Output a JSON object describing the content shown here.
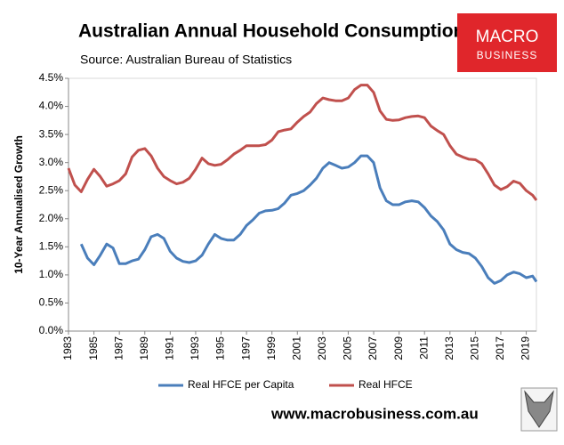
{
  "chart_data": {
    "type": "line",
    "title": "Australian Annual Household Consumption",
    "subtitle": "Source: Australian Bureau of Statistics",
    "logo": [
      "MACRO",
      "BUSINESS"
    ],
    "footer": "www.macrobusiness.com.au",
    "ylabel": "10-Year Annualised Growth",
    "legend": "bottom",
    "x": [
      1983.0,
      1983.5,
      1984.0,
      1984.5,
      1985.0,
      1985.5,
      1986.0,
      1986.5,
      1987.0,
      1987.5,
      1988.0,
      1988.5,
      1989.0,
      1989.5,
      1990.0,
      1990.5,
      1991.0,
      1991.5,
      1992.0,
      1992.5,
      1993.0,
      1993.5,
      1994.0,
      1994.5,
      1995.0,
      1995.5,
      1996.0,
      1996.5,
      1997.0,
      1997.5,
      1998.0,
      1998.5,
      1999.0,
      1999.5,
      2000.0,
      2000.5,
      2001.0,
      2001.5,
      2002.0,
      2002.5,
      2003.0,
      2003.5,
      2004.0,
      2004.5,
      2005.0,
      2005.5,
      2006.0,
      2006.5,
      2007.0,
      2007.5,
      2008.0,
      2008.5,
      2009.0,
      2009.5,
      2010.0,
      2010.5,
      2011.0,
      2011.5,
      2012.0,
      2012.5,
      2013.0,
      2013.5,
      2014.0,
      2014.5,
      2015.0,
      2015.5,
      2016.0,
      2016.5,
      2017.0,
      2017.5,
      2018.0,
      2018.5,
      2019.0,
      2019.5,
      2019.8
    ],
    "series": [
      {
        "name": "Real HFCE per Capita",
        "color": "#4a7ebb",
        "values": [
          null,
          null,
          1.55,
          1.3,
          1.18,
          1.35,
          1.55,
          1.48,
          1.2,
          1.2,
          1.25,
          1.28,
          1.45,
          1.68,
          1.72,
          1.65,
          1.42,
          1.3,
          1.24,
          1.22,
          1.25,
          1.35,
          1.55,
          1.72,
          1.65,
          1.62,
          1.62,
          1.72,
          1.88,
          1.98,
          2.1,
          2.14,
          2.15,
          2.18,
          2.28,
          2.42,
          2.45,
          2.5,
          2.6,
          2.72,
          2.9,
          3.0,
          2.95,
          2.9,
          2.92,
          3.0,
          3.12,
          3.12,
          3.0,
          2.55,
          2.32,
          2.25,
          2.25,
          2.3,
          2.32,
          2.3,
          2.2,
          2.05,
          1.95,
          1.8,
          1.55,
          1.45,
          1.4,
          1.38,
          1.3,
          1.15,
          0.95,
          0.85,
          0.9,
          1.0,
          1.05,
          1.02,
          0.95,
          0.98,
          0.88
        ]
      },
      {
        "name": "Real HFCE",
        "color": "#c0504d",
        "values": [
          2.9,
          2.6,
          2.48,
          2.7,
          2.88,
          2.75,
          2.58,
          2.62,
          2.68,
          2.8,
          3.1,
          3.22,
          3.25,
          3.12,
          2.9,
          2.75,
          2.68,
          2.62,
          2.65,
          2.72,
          2.88,
          3.08,
          2.98,
          2.95,
          2.97,
          3.05,
          3.15,
          3.22,
          3.3,
          3.3,
          3.3,
          3.32,
          3.4,
          3.55,
          3.58,
          3.6,
          3.72,
          3.82,
          3.9,
          4.05,
          4.15,
          4.12,
          4.1,
          4.1,
          4.15,
          4.3,
          4.38,
          4.38,
          4.25,
          3.92,
          3.77,
          3.75,
          3.76,
          3.8,
          3.82,
          3.83,
          3.8,
          3.65,
          3.57,
          3.5,
          3.3,
          3.15,
          3.1,
          3.06,
          3.05,
          2.98,
          2.8,
          2.6,
          2.52,
          2.57,
          2.67,
          2.63,
          2.5,
          2.42,
          2.33
        ]
      }
    ],
    "xlim": [
      1983,
      2019.8
    ],
    "xticks": [
      1983,
      1985,
      1987,
      1989,
      1991,
      1993,
      1995,
      1997,
      1999,
      2001,
      2003,
      2005,
      2007,
      2009,
      2011,
      2013,
      2015,
      2017,
      2019
    ],
    "ylim": [
      0,
      4.5
    ],
    "yticks": [
      {
        "value": 0,
        "label": "0.0%"
      },
      {
        "value": 0.5,
        "label": "0.5%"
      },
      {
        "value": 1,
        "label": "1.0%"
      },
      {
        "value": 1.5,
        "label": "1.5%"
      },
      {
        "value": 2,
        "label": "2.0%"
      },
      {
        "value": 2.5,
        "label": "2.5%"
      },
      {
        "value": 3,
        "label": "3.0%"
      },
      {
        "value": 3.5,
        "label": "3.5%"
      },
      {
        "value": 4,
        "label": "4.0%"
      },
      {
        "value": 4.5,
        "label": "4.5%"
      }
    ],
    "grid": false
  }
}
